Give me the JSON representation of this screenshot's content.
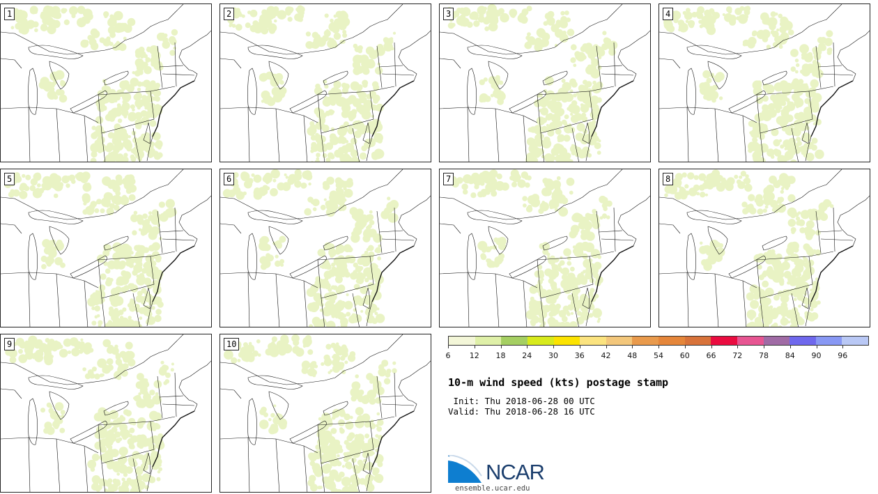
{
  "panels": [
    {
      "label": "1"
    },
    {
      "label": "2"
    },
    {
      "label": "3"
    },
    {
      "label": "4"
    },
    {
      "label": "5"
    },
    {
      "label": "6"
    },
    {
      "label": "7"
    },
    {
      "label": "8"
    },
    {
      "label": "9"
    },
    {
      "label": "10"
    }
  ],
  "colorbar": {
    "colors": [
      "#f3f6d8",
      "#dff0a8",
      "#a5cf62",
      "#d7ea1c",
      "#fce300",
      "#fbe37f",
      "#f3c77b",
      "#e99a4c",
      "#e5863a",
      "#d8733a",
      "#ea0c40",
      "#e75592",
      "#a06ba5",
      "#6f68ed",
      "#8898f4",
      "#b9c8f5"
    ],
    "ticks": [
      "6",
      "12",
      "18",
      "24",
      "30",
      "36",
      "42",
      "48",
      "54",
      "60",
      "66",
      "72",
      "78",
      "84",
      "90",
      "96"
    ]
  },
  "title": "10-m wind speed (kts) postage stamp",
  "init_text": " Init: Thu 2018-06-28 00 UTC",
  "valid_text": "Valid: Thu 2018-06-28 16 UTC",
  "logo": {
    "text": "NCAR",
    "site": "ensemble.ucar.edu"
  }
}
